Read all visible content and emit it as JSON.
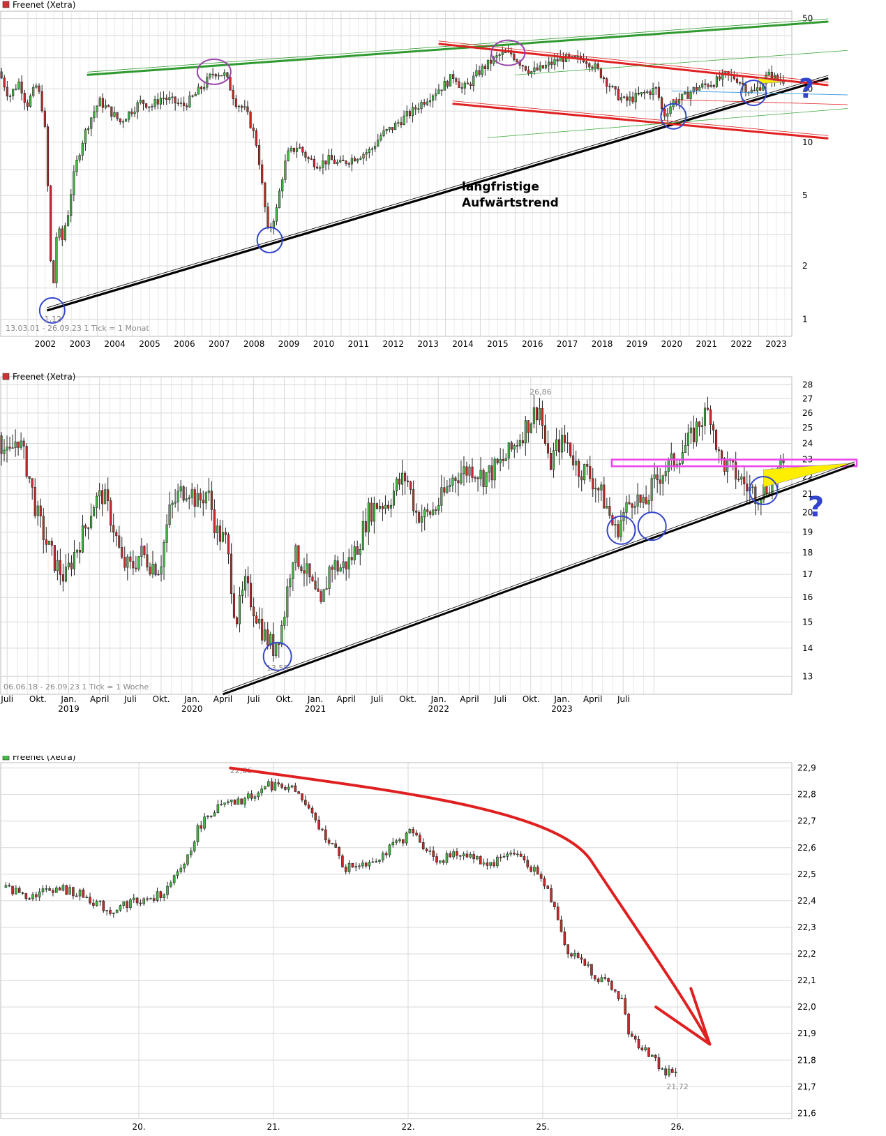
{
  "chart_data": [
    {
      "type": "candlestick",
      "legend": "Freenet (Xetra)",
      "legend_color": "#d03030",
      "info": "13.03.01 - 26.09.23   1 Tick = 1 Monat",
      "y_scale": "log",
      "ylim": [
        0.8,
        55
      ],
      "y_ticks": [
        1,
        2,
        5,
        10,
        20,
        50
      ],
      "y_tick_labels": [
        "1",
        "2",
        "5",
        "10",
        "20",
        "50"
      ],
      "x_ticks": [
        "2002",
        "2003",
        "2004",
        "2005",
        "2006",
        "2007",
        "2008",
        "2009",
        "2010",
        "2011",
        "2012",
        "2013",
        "2014",
        "2015",
        "2016",
        "2017",
        "2018",
        "2019",
        "2020",
        "2021",
        "2022",
        "2023"
      ],
      "annotation": "langfristige\nAufwärtstrend",
      "annotation_lines": [
        "langfristige",
        "Aufwärtstrend"
      ],
      "low_label": "1,12",
      "question": "?",
      "path": [
        [
          2001.2,
          25
        ],
        [
          2001.5,
          18
        ],
        [
          2001.8,
          22
        ],
        [
          2002.0,
          16
        ],
        [
          2002.3,
          21
        ],
        [
          2002.5,
          14
        ],
        [
          2002.65,
          3.0
        ],
        [
          2002.75,
          1.12
        ],
        [
          2002.9,
          3.5
        ],
        [
          2003.0,
          2.6
        ],
        [
          2003.2,
          4.0
        ],
        [
          2003.5,
          8.5
        ],
        [
          2003.8,
          13
        ],
        [
          2004.1,
          17
        ],
        [
          2004.4,
          15
        ],
        [
          2004.7,
          13
        ],
        [
          2005.0,
          15
        ],
        [
          2005.3,
          17
        ],
        [
          2005.6,
          16
        ],
        [
          2005.9,
          18
        ],
        [
          2006.2,
          17
        ],
        [
          2006.5,
          16
        ],
        [
          2006.8,
          18
        ],
        [
          2007.1,
          21
        ],
        [
          2007.4,
          25
        ],
        [
          2007.7,
          24
        ],
        [
          2008.0,
          17
        ],
        [
          2008.3,
          15
        ],
        [
          2008.6,
          10
        ],
        [
          2008.8,
          5
        ],
        [
          2008.95,
          3.0
        ],
        [
          2009.2,
          4.2
        ],
        [
          2009.5,
          8.5
        ],
        [
          2009.8,
          9.5
        ],
        [
          2010.1,
          8
        ],
        [
          2010.4,
          7.5
        ],
        [
          2010.7,
          8
        ],
        [
          2011.0,
          7.5
        ],
        [
          2011.3,
          8
        ],
        [
          2011.6,
          8.5
        ],
        [
          2011.9,
          9
        ],
        [
          2012.2,
          11
        ],
        [
          2012.5,
          12
        ],
        [
          2012.8,
          13.5
        ],
        [
          2013.1,
          15
        ],
        [
          2013.4,
          17
        ],
        [
          2013.7,
          19
        ],
        [
          2014.0,
          21
        ],
        [
          2014.3,
          24
        ],
        [
          2014.5,
          20
        ],
        [
          2014.7,
          21
        ],
        [
          2015.0,
          25
        ],
        [
          2015.3,
          28
        ],
        [
          2015.6,
          31
        ],
        [
          2015.9,
          32
        ],
        [
          2016.2,
          28
        ],
        [
          2016.5,
          25
        ],
        [
          2016.8,
          26
        ],
        [
          2017.1,
          28
        ],
        [
          2017.4,
          30
        ],
        [
          2017.7,
          29
        ],
        [
          2018.0,
          30
        ],
        [
          2018.3,
          27
        ],
        [
          2018.6,
          23
        ],
        [
          2018.9,
          19
        ],
        [
          2019.2,
          17
        ],
        [
          2019.5,
          18
        ],
        [
          2019.8,
          19
        ],
        [
          2020.1,
          20
        ],
        [
          2020.3,
          14
        ],
        [
          2020.6,
          17
        ],
        [
          2020.9,
          18
        ],
        [
          2021.2,
          20
        ],
        [
          2021.5,
          21
        ],
        [
          2021.8,
          22
        ],
        [
          2022.1,
          24
        ],
        [
          2022.4,
          23
        ],
        [
          2022.7,
          20
        ],
        [
          2022.9,
          19
        ],
        [
          2023.1,
          21
        ],
        [
          2023.3,
          24
        ],
        [
          2023.5,
          23
        ],
        [
          2023.7,
          22.5
        ]
      ],
      "trendlines": [
        {
          "color": "#000000",
          "from": [
            2002.55,
            1.12
          ],
          "to": [
            2025.0,
            23
          ]
        },
        {
          "color": "#2f9a2f",
          "from": [
            2003.7,
            24
          ],
          "to": [
            2025.0,
            48
          ]
        },
        {
          "color": "#e02020",
          "from": [
            2013.8,
            36
          ],
          "to": [
            2025.0,
            21
          ]
        },
        {
          "color": "#e02020",
          "from": [
            2014.2,
            16.5
          ],
          "to": [
            2025.0,
            10.5
          ]
        }
      ],
      "circles": [
        {
          "x": 2002.7,
          "y": 1.12,
          "color": "#3344cc"
        },
        {
          "x": 2008.95,
          "y": 2.8,
          "color": "#3344cc"
        },
        {
          "x": 2007.35,
          "y": 25,
          "color": "#9944aa"
        },
        {
          "x": 2015.8,
          "y": 32,
          "color": "#9944aa"
        },
        {
          "x": 2020.55,
          "y": 14,
          "color": "#3344cc"
        },
        {
          "x": 2022.85,
          "y": 19,
          "color": "#3344cc"
        }
      ]
    },
    {
      "type": "candlestick",
      "legend": "Freenet (Xetra)",
      "legend_color": "#d03030",
      "info": "06.06.18 - 26.09.23   1 Tick = 1 Woche",
      "y_scale": "log",
      "ylim": [
        12.4,
        28.6
      ],
      "y_ticks": [
        13,
        14,
        15,
        16,
        17,
        18,
        19,
        20,
        21,
        22,
        23,
        24,
        25,
        26,
        27,
        28
      ],
      "y_tick_labels": [
        "13",
        "14",
        "15",
        "16",
        "17",
        "18",
        "19",
        "20",
        "21",
        "22",
        "23",
        "24",
        "25",
        "26",
        "27",
        "28"
      ],
      "x_ticks": [
        "Juli",
        "Okt.",
        "Jan.",
        "April",
        "Juli",
        "Okt.",
        "Jan.",
        "April",
        "Juli",
        "Okt.",
        "Jan.",
        "April",
        "Juli",
        "Okt.",
        "Jan.",
        "April",
        "Juli",
        "Okt.",
        "Jan.",
        "April",
        "Juli"
      ],
      "x_year_labels": [
        {
          "label": "2019",
          "index": 2
        },
        {
          "label": "2020",
          "index": 6
        },
        {
          "label": "2021",
          "index": 10
        },
        {
          "label": "2022",
          "index": 14
        },
        {
          "label": "2023",
          "index": 18
        }
      ],
      "high_label": "26,86",
      "low_label": "13,59",
      "question": "?",
      "path": [
        [
          0,
          24.5
        ],
        [
          4,
          23
        ],
        [
          8,
          24.5
        ],
        [
          12,
          22.5
        ],
        [
          16,
          20
        ],
        [
          20,
          18.5
        ],
        [
          24,
          17.5
        ],
        [
          28,
          16.8
        ],
        [
          32,
          18
        ],
        [
          36,
          19
        ],
        [
          40,
          20.5
        ],
        [
          44,
          21
        ],
        [
          48,
          19.5
        ],
        [
          52,
          17.5
        ],
        [
          56,
          17.3
        ],
        [
          60,
          18
        ],
        [
          64,
          17.5
        ],
        [
          68,
          17.3
        ],
        [
          72,
          20
        ],
        [
          76,
          21
        ],
        [
          80,
          21.4
        ],
        [
          84,
          20.5
        ],
        [
          88,
          21.2
        ],
        [
          92,
          19
        ],
        [
          96,
          18.5
        ],
        [
          100,
          15
        ],
        [
          104,
          16.5
        ],
        [
          108,
          15.5
        ],
        [
          112,
          14.5
        ],
        [
          116,
          14
        ],
        [
          120,
          15
        ],
        [
          124,
          18
        ],
        [
          128,
          17.5
        ],
        [
          132,
          16.5
        ],
        [
          136,
          15.5
        ],
        [
          140,
          17.5
        ],
        [
          144,
          17.3
        ],
        [
          148,
          17.6
        ],
        [
          152,
          18.5
        ],
        [
          156,
          20
        ],
        [
          160,
          20.5
        ],
        [
          164,
          20.5
        ],
        [
          168,
          21.5
        ],
        [
          172,
          22
        ],
        [
          176,
          20
        ],
        [
          180,
          19.8
        ],
        [
          184,
          20.2
        ],
        [
          188,
          21
        ],
        [
          192,
          22
        ],
        [
          196,
          22.3
        ],
        [
          200,
          22.5
        ],
        [
          204,
          22
        ],
        [
          208,
          22.3
        ],
        [
          212,
          22.8
        ],
        [
          216,
          23.5
        ],
        [
          220,
          24.5
        ],
        [
          224,
          25.5
        ],
        [
          228,
          26.5
        ],
        [
          232,
          22.5
        ],
        [
          236,
          24
        ],
        [
          240,
          24
        ],
        [
          244,
          22.5
        ],
        [
          248,
          22.3
        ],
        [
          252,
          21.5
        ],
        [
          256,
          20.5
        ],
        [
          260,
          19
        ],
        [
          264,
          20
        ],
        [
          268,
          21
        ],
        [
          272,
          20.2
        ],
        [
          276,
          21.5
        ],
        [
          280,
          22.3
        ],
        [
          284,
          22.8
        ],
        [
          288,
          23.5
        ],
        [
          292,
          24.3
        ],
        [
          296,
          25.5
        ],
        [
          300,
          26.2
        ],
        [
          304,
          23
        ],
        [
          308,
          22.5
        ],
        [
          312,
          22
        ],
        [
          316,
          21.3
        ],
        [
          320,
          21
        ],
        [
          324,
          21.4
        ],
        [
          328,
          22.2
        ],
        [
          331,
          22.5
        ]
      ],
      "trendlines": [
        {
          "color": "#000000",
          "from": [
            94,
            12.4
          ],
          "to": [
            428,
            22.7
          ]
        }
      ],
      "bands": [
        {
          "color": "#ee44ee",
          "from_y": 22.6,
          "to_y": 23.0,
          "from_x": 258
        }
      ],
      "circles": [
        {
          "x": 117,
          "y": 13.7,
          "color": "#3344cc"
        },
        {
          "x": 262,
          "y": 19.1,
          "color": "#3344cc"
        },
        {
          "x": 275,
          "y": 19.3,
          "color": "#3344cc"
        },
        {
          "x": 322,
          "y": 21.2,
          "color": "#3344cc"
        }
      ]
    },
    {
      "type": "candlestick",
      "legend": "Freenet (Xetra)",
      "legend_color": "#44bb44",
      "y_scale": "linear",
      "ylim": [
        21.58,
        22.92
      ],
      "y_ticks": [
        21.6,
        21.7,
        21.8,
        21.9,
        22.0,
        22.1,
        22.2,
        22.3,
        22.4,
        22.5,
        22.6,
        22.7,
        22.8,
        22.9
      ],
      "y_tick_labels": [
        "21,6",
        "21,7",
        "21,8",
        "21,9",
        "22,0",
        "22,1",
        "22,2",
        "22,3",
        "22,4",
        "22,5",
        "22,6",
        "22,7",
        "22,8",
        "22,9"
      ],
      "x_ticks": [
        "20.",
        "21.",
        "22.",
        "25.",
        "26."
      ],
      "high_label": "22,86",
      "low_label": "21,72",
      "path": [
        [
          0,
          22.45
        ],
        [
          10,
          22.42
        ],
        [
          20,
          22.45
        ],
        [
          30,
          22.42
        ],
        [
          40,
          22.36
        ],
        [
          48,
          22.4
        ],
        [
          55,
          22.4
        ],
        [
          62,
          22.45
        ],
        [
          68,
          22.55
        ],
        [
          73,
          22.68
        ],
        [
          78,
          22.74
        ],
        [
          83,
          22.76
        ],
        [
          88,
          22.77
        ],
        [
          93,
          22.8
        ],
        [
          98,
          22.83
        ],
        [
          103,
          22.84
        ],
        [
          108,
          22.82
        ],
        [
          112,
          22.77
        ],
        [
          117,
          22.68
        ],
        [
          122,
          22.62
        ],
        [
          127,
          22.52
        ],
        [
          132,
          22.54
        ],
        [
          137,
          22.55
        ],
        [
          142,
          22.58
        ],
        [
          147,
          22.62
        ],
        [
          152,
          22.66
        ],
        [
          157,
          22.6
        ],
        [
          162,
          22.55
        ],
        [
          167,
          22.57
        ],
        [
          172,
          22.58
        ],
        [
          177,
          22.55
        ],
        [
          182,
          22.54
        ],
        [
          187,
          22.58
        ],
        [
          192,
          22.57
        ],
        [
          197,
          22.52
        ],
        [
          202,
          22.45
        ],
        [
          206,
          22.35
        ],
        [
          210,
          22.2
        ],
        [
          215,
          22.18
        ],
        [
          220,
          22.12
        ],
        [
          225,
          22.08
        ],
        [
          230,
          22.03
        ],
        [
          233,
          21.88
        ],
        [
          238,
          21.85
        ],
        [
          242,
          21.8
        ],
        [
          246,
          21.75
        ],
        [
          250,
          21.76
        ]
      ],
      "arrow_color": "#e02020"
    }
  ]
}
